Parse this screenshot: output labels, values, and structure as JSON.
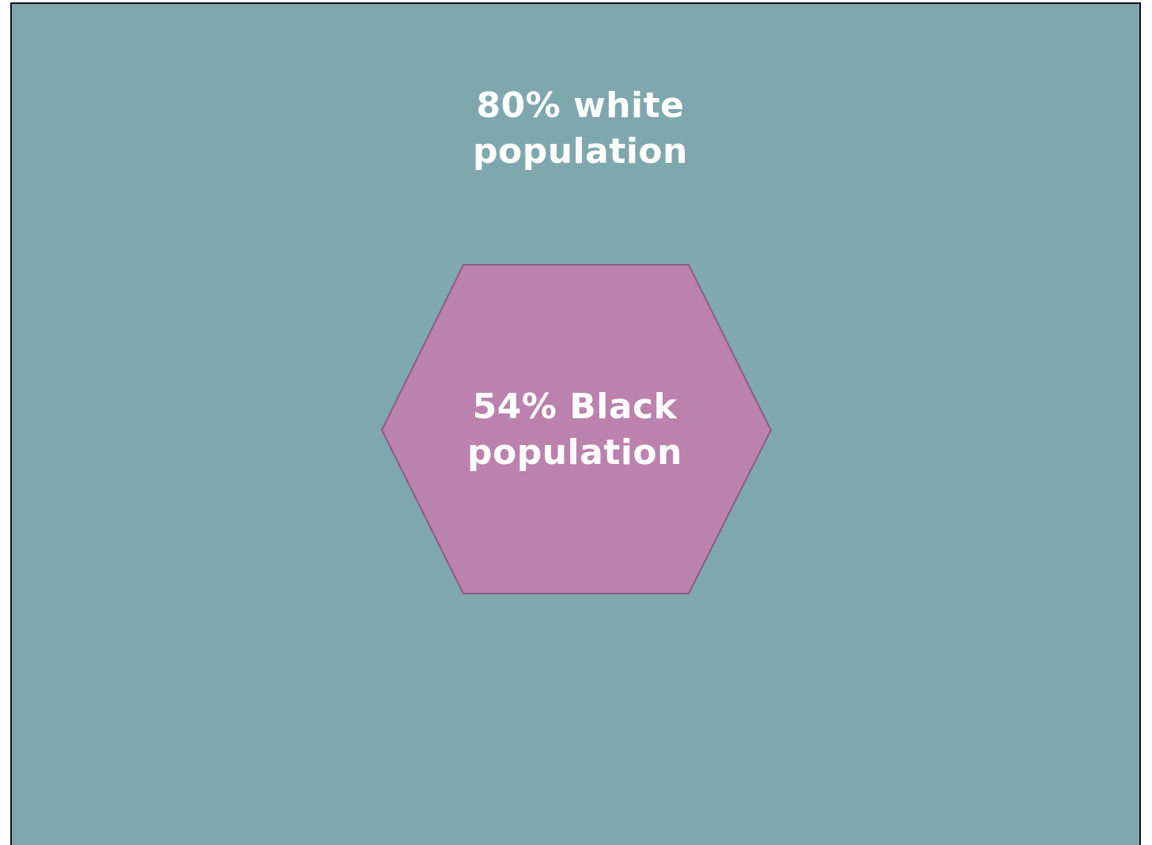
{
  "outer_region": {
    "line1": "80% white",
    "line2": "population",
    "fill_color": "#7fa8ae"
  },
  "inner_region": {
    "line1": "54% Black",
    "line2": "population",
    "fill_color": "#ba82ad",
    "stroke_color": "#8a5a86",
    "shape": "hexagon"
  }
}
